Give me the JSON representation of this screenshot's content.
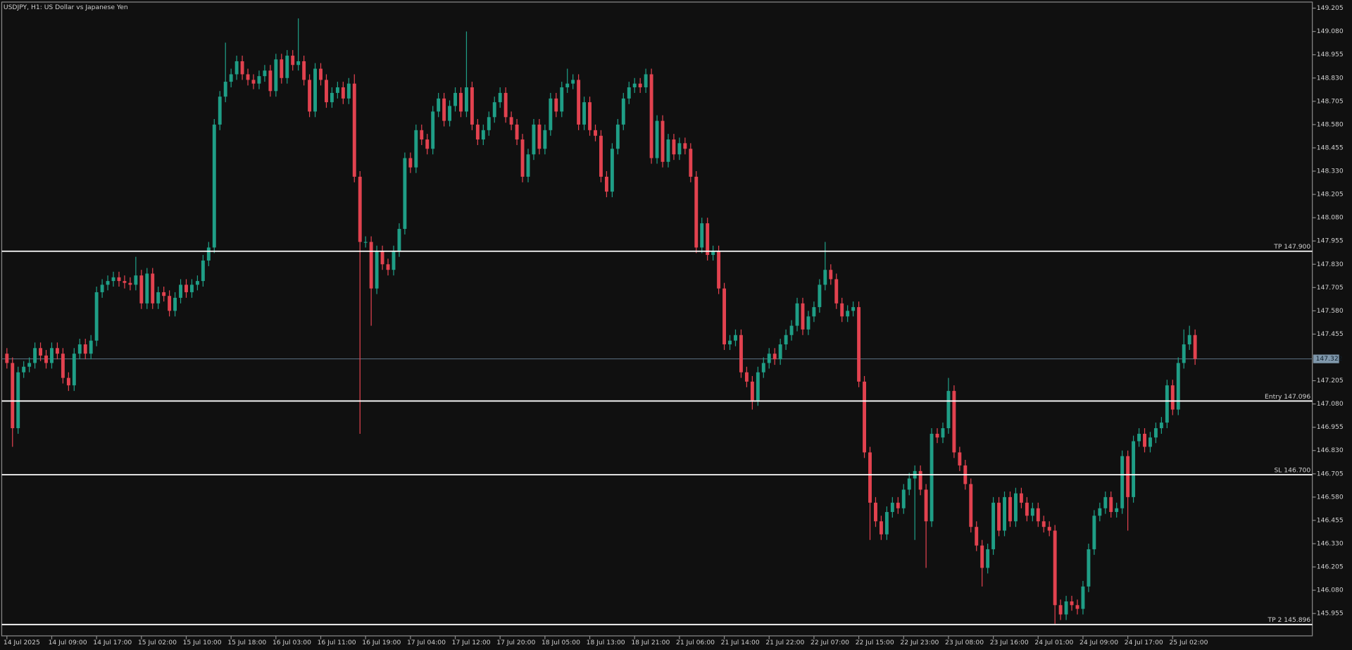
{
  "chart_data": {
    "type": "candlestick",
    "title": "USDJPY, H1:  US Dollar vs Japanese Yen",
    "up_color": "#1f9e86",
    "down_color": "#e2424f",
    "background": "#101010",
    "categories": [
      "14 Jul 2025",
      null,
      null,
      null,
      null,
      null,
      null,
      null,
      "14 Jul 09:00",
      null,
      null,
      null,
      null,
      null,
      null,
      null,
      "14 Jul 17:00",
      null,
      null,
      null,
      null,
      null,
      null,
      null,
      "15 Jul 02:00",
      null,
      null,
      null,
      null,
      null,
      null,
      null,
      "15 Jul 10:00",
      null,
      null,
      null,
      null,
      null,
      null,
      null,
      "15 Jul 18:00",
      null,
      null,
      null,
      null,
      null,
      null,
      null,
      "16 Jul 03:00",
      null,
      null,
      null,
      null,
      null,
      null,
      null,
      "16 Jul 11:00",
      null,
      null,
      null,
      null,
      null,
      null,
      null,
      "16 Jul 19:00",
      null,
      null,
      null,
      null,
      null,
      null,
      null,
      "17 Jul 04:00",
      null,
      null,
      null,
      null,
      null,
      null,
      null,
      "17 Jul 12:00",
      null,
      null,
      null,
      null,
      null,
      null,
      null,
      "17 Jul 20:00",
      null,
      null,
      null,
      null,
      null,
      null,
      null,
      "18 Jul 05:00",
      null,
      null,
      null,
      null,
      null,
      null,
      null,
      "18 Jul 13:00",
      null,
      null,
      null,
      null,
      null,
      null,
      null,
      "18 Jul 21:00",
      null,
      null,
      null,
      null,
      null,
      null,
      null,
      "21 Jul 06:00",
      null,
      null,
      null,
      null,
      null,
      null,
      null,
      "21 Jul 14:00",
      null,
      null,
      null,
      null,
      null,
      null,
      null,
      "21 Jul 22:00",
      null,
      null,
      null,
      null,
      null,
      null,
      null,
      "22 Jul 07:00",
      null,
      null,
      null,
      null,
      null,
      null,
      null,
      "22 Jul 15:00",
      null,
      null,
      null,
      null,
      null,
      null,
      null,
      "22 Jul 23:00",
      null,
      null,
      null,
      null,
      null,
      null,
      null,
      "23 Jul 08:00",
      null,
      null,
      null,
      null,
      null,
      null,
      null,
      "23 Jul 16:00",
      null,
      null,
      null,
      null,
      null,
      null,
      null,
      "24 Jul 01:00",
      null,
      null,
      null,
      null,
      null,
      null,
      null,
      "24 Jul 09:00",
      null,
      null,
      null,
      null,
      null,
      null,
      null,
      "24 Jul 17:00",
      null,
      null,
      null,
      null,
      null,
      null,
      null,
      "25 Jul 02:00",
      null,
      null,
      null,
      null
    ],
    "open": [
      147.35,
      147.3,
      146.95,
      147.25,
      147.28,
      147.3,
      147.38,
      147.34,
      147.3,
      147.38,
      147.35,
      147.22,
      147.18,
      147.35,
      147.4,
      147.35,
      147.42,
      147.68,
      147.72,
      147.74,
      147.76,
      147.74,
      147.73,
      147.72,
      147.77,
      147.62,
      147.78,
      147.62,
      147.68,
      147.66,
      147.58,
      147.65,
      147.72,
      147.68,
      147.72,
      147.74,
      147.85,
      147.92,
      148.58,
      148.73,
      148.81,
      148.85,
      148.92,
      148.85,
      148.82,
      148.8,
      148.84,
      148.87,
      148.76,
      148.93,
      148.83,
      148.95,
      148.9,
      148.92,
      148.82,
      148.65,
      148.88,
      148.82,
      148.7,
      148.75,
      148.78,
      148.72,
      148.8,
      148.3,
      147.95,
      147.95,
      147.7,
      147.9,
      147.83,
      147.8,
      147.9,
      148.02,
      148.4,
      148.35,
      148.55,
      148.5,
      148.45,
      148.65,
      148.72,
      148.6,
      148.68,
      148.75,
      148.65,
      148.78,
      148.58,
      148.5,
      148.55,
      148.62,
      148.7,
      148.75,
      148.62,
      148.58,
      148.5,
      148.3,
      148.42,
      148.58,
      148.45,
      148.55,
      148.72,
      148.65,
      148.78,
      148.8,
      148.82,
      148.58,
      148.7,
      148.55,
      148.52,
      148.3,
      148.22,
      148.45,
      148.58,
      148.72,
      148.78,
      148.8,
      148.78,
      148.85,
      148.4,
      148.6,
      148.38,
      148.5,
      148.42,
      148.48,
      148.45,
      148.3,
      147.92,
      148.05,
      147.88,
      147.9,
      147.7,
      147.4,
      147.42,
      147.45,
      147.25,
      147.2,
      147.1,
      147.25,
      147.3,
      147.35,
      147.32,
      147.4,
      147.45,
      147.5,
      147.62,
      147.48,
      147.55,
      147.6,
      147.72,
      147.8,
      147.75,
      147.62,
      147.55,
      147.58,
      147.6,
      147.2,
      146.82,
      146.55,
      146.45,
      146.38,
      146.5,
      146.55,
      146.52,
      146.62,
      146.68,
      146.72,
      146.62,
      146.45,
      146.92,
      146.9,
      146.95,
      147.15,
      146.82,
      146.75,
      146.65,
      146.42,
      146.32,
      146.2,
      146.3,
      146.55,
      146.4,
      146.58,
      146.45,
      146.6,
      146.55,
      146.48,
      146.52,
      146.45,
      146.42,
      146.4,
      146.0,
      145.95,
      146.02,
      146.0,
      145.98,
      146.1,
      146.3,
      146.48,
      146.52,
      146.58,
      146.5,
      146.52,
      146.8,
      146.58,
      146.88,
      146.92,
      146.85,
      146.9,
      146.95,
      146.98,
      147.18,
      147.05,
      147.3,
      147.4,
      147.45
    ],
    "high": [
      147.38,
      147.33,
      147.28,
      147.31,
      147.33,
      147.41,
      147.41,
      147.37,
      147.41,
      147.41,
      147.38,
      147.25,
      147.38,
      147.43,
      147.43,
      147.45,
      147.71,
      147.75,
      147.77,
      147.79,
      147.79,
      147.77,
      147.76,
      147.87,
      147.8,
      147.81,
      147.81,
      147.71,
      147.71,
      147.69,
      147.68,
      147.75,
      147.75,
      147.75,
      147.77,
      147.88,
      147.95,
      148.61,
      148.76,
      149.02,
      148.88,
      148.95,
      148.95,
      148.88,
      148.85,
      148.87,
      148.9,
      148.9,
      148.96,
      148.96,
      148.98,
      148.98,
      149.15,
      148.95,
      148.85,
      148.91,
      148.91,
      148.85,
      148.78,
      148.81,
      148.81,
      148.83,
      148.85,
      148.33,
      147.98,
      147.98,
      147.93,
      147.93,
      147.86,
      147.93,
      148.05,
      148.43,
      148.43,
      148.58,
      148.58,
      148.53,
      148.68,
      148.75,
      148.75,
      148.71,
      148.78,
      148.78,
      149.08,
      148.81,
      148.61,
      148.58,
      148.65,
      148.73,
      148.78,
      148.78,
      148.65,
      148.61,
      148.53,
      148.45,
      148.61,
      148.61,
      148.58,
      148.75,
      148.75,
      148.81,
      148.88,
      148.85,
      148.85,
      148.73,
      148.73,
      148.58,
      148.55,
      148.33,
      148.48,
      148.61,
      148.75,
      148.81,
      148.83,
      148.83,
      148.88,
      148.88,
      148.63,
      148.63,
      148.53,
      148.53,
      148.51,
      148.51,
      148.48,
      148.33,
      148.08,
      148.08,
      147.93,
      147.93,
      147.73,
      147.45,
      147.48,
      147.48,
      147.28,
      147.23,
      147.28,
      147.33,
      147.38,
      147.38,
      147.43,
      147.48,
      147.53,
      147.65,
      147.65,
      147.58,
      147.63,
      147.75,
      147.95,
      147.83,
      147.78,
      147.65,
      147.61,
      147.63,
      147.63,
      147.23,
      146.85,
      146.58,
      146.48,
      146.53,
      146.58,
      146.58,
      146.65,
      146.71,
      146.75,
      146.75,
      146.65,
      146.95,
      146.95,
      146.98,
      147.22,
      147.18,
      146.85,
      146.78,
      146.68,
      146.45,
      146.35,
      146.33,
      146.58,
      146.58,
      146.61,
      146.61,
      146.63,
      146.63,
      146.58,
      146.55,
      146.55,
      146.48,
      146.45,
      146.43,
      146.03,
      146.05,
      146.05,
      146.03,
      146.13,
      146.33,
      146.51,
      146.55,
      146.61,
      146.61,
      146.55,
      146.83,
      146.83,
      146.91,
      146.95,
      146.95,
      146.93,
      146.98,
      147.01,
      147.21,
      147.21,
      147.33,
      147.48,
      147.5,
      147.48
    ],
    "low": [
      147.27,
      146.85,
      146.92,
      147.22,
      147.25,
      147.27,
      147.31,
      147.27,
      147.27,
      147.32,
      147.19,
      147.15,
      147.15,
      147.32,
      147.32,
      147.32,
      147.39,
      147.65,
      147.69,
      147.71,
      147.71,
      147.7,
      147.69,
      147.69,
      147.59,
      147.59,
      147.59,
      147.59,
      147.63,
      147.55,
      147.55,
      147.62,
      147.65,
      147.65,
      147.69,
      147.71,
      147.82,
      147.89,
      148.55,
      148.7,
      148.78,
      148.82,
      148.82,
      148.79,
      148.77,
      148.77,
      148.81,
      148.73,
      148.73,
      148.8,
      148.8,
      148.87,
      148.87,
      148.79,
      148.62,
      148.62,
      148.79,
      148.67,
      148.67,
      148.72,
      148.69,
      148.69,
      148.27,
      146.92,
      147.92,
      147.5,
      147.67,
      147.8,
      147.77,
      147.77,
      147.87,
      147.99,
      148.32,
      148.32,
      148.47,
      148.42,
      148.42,
      148.62,
      148.57,
      148.57,
      148.65,
      148.62,
      148.62,
      148.55,
      148.47,
      148.47,
      148.52,
      148.59,
      148.67,
      148.59,
      148.55,
      148.47,
      148.27,
      148.27,
      148.39,
      148.42,
      148.42,
      148.52,
      148.62,
      148.62,
      148.75,
      148.77,
      148.55,
      148.55,
      148.52,
      148.49,
      148.27,
      148.19,
      148.19,
      148.42,
      148.55,
      148.69,
      148.75,
      148.75,
      148.75,
      148.37,
      148.37,
      148.35,
      148.35,
      148.39,
      148.39,
      148.42,
      148.27,
      147.89,
      147.89,
      147.85,
      147.85,
      147.67,
      147.37,
      147.37,
      147.39,
      147.22,
      147.17,
      147.05,
      147.07,
      147.22,
      147.27,
      147.29,
      147.29,
      147.37,
      147.42,
      147.47,
      147.45,
      147.45,
      147.52,
      147.57,
      147.69,
      147.72,
      147.59,
      147.52,
      147.52,
      147.55,
      147.17,
      146.79,
      146.35,
      146.42,
      146.35,
      146.35,
      146.47,
      146.49,
      146.49,
      146.59,
      146.35,
      146.59,
      146.2,
      146.42,
      146.87,
      146.87,
      146.92,
      146.79,
      146.72,
      146.62,
      146.39,
      146.29,
      146.1,
      146.17,
      146.27,
      146.37,
      146.37,
      146.42,
      146.42,
      146.52,
      146.45,
      146.45,
      146.42,
      146.39,
      146.37,
      145.9,
      145.92,
      145.92,
      145.97,
      145.95,
      145.95,
      146.07,
      146.27,
      146.45,
      146.49,
      146.47,
      146.47,
      146.49,
      146.4,
      146.55,
      146.85,
      146.82,
      146.82,
      146.87,
      146.92,
      146.95,
      147.02,
      147.02,
      147.27,
      147.37,
      147.29
    ],
    "close": [
      147.3,
      146.95,
      147.25,
      147.28,
      147.3,
      147.38,
      147.34,
      147.3,
      147.38,
      147.35,
      147.22,
      147.18,
      147.35,
      147.4,
      147.35,
      147.42,
      147.68,
      147.72,
      147.74,
      147.76,
      147.74,
      147.73,
      147.72,
      147.77,
      147.62,
      147.78,
      147.62,
      147.68,
      147.66,
      147.58,
      147.65,
      147.72,
      147.68,
      147.72,
      147.74,
      147.85,
      147.92,
      148.58,
      148.73,
      148.81,
      148.85,
      148.92,
      148.85,
      148.82,
      148.8,
      148.84,
      148.87,
      148.76,
      148.93,
      148.83,
      148.95,
      148.9,
      148.92,
      148.82,
      148.65,
      148.88,
      148.82,
      148.7,
      148.75,
      148.78,
      148.72,
      148.8,
      148.3,
      147.95,
      147.95,
      147.7,
      147.9,
      147.83,
      147.8,
      147.9,
      148.02,
      148.4,
      148.35,
      148.55,
      148.5,
      148.45,
      148.65,
      148.72,
      148.6,
      148.68,
      148.75,
      148.65,
      148.78,
      148.58,
      148.5,
      148.55,
      148.62,
      148.7,
      148.75,
      148.62,
      148.58,
      148.5,
      148.3,
      148.42,
      148.58,
      148.45,
      148.55,
      148.72,
      148.65,
      148.78,
      148.8,
      148.82,
      148.58,
      148.7,
      148.55,
      148.52,
      148.3,
      148.22,
      148.45,
      148.58,
      148.72,
      148.78,
      148.8,
      148.78,
      148.85,
      148.4,
      148.6,
      148.38,
      148.5,
      148.42,
      148.48,
      148.45,
      148.3,
      147.92,
      148.05,
      147.88,
      147.9,
      147.7,
      147.4,
      147.42,
      147.45,
      147.25,
      147.2,
      147.1,
      147.25,
      147.3,
      147.35,
      147.32,
      147.4,
      147.45,
      147.5,
      147.62,
      147.48,
      147.55,
      147.6,
      147.72,
      147.8,
      147.75,
      147.62,
      147.55,
      147.58,
      147.6,
      147.2,
      146.82,
      146.55,
      146.45,
      146.38,
      146.5,
      146.55,
      146.52,
      146.62,
      146.68,
      146.72,
      146.62,
      146.45,
      146.92,
      146.9,
      146.95,
      147.15,
      146.82,
      146.75,
      146.65,
      146.42,
      146.32,
      146.2,
      146.3,
      146.55,
      146.4,
      146.58,
      146.45,
      146.6,
      146.55,
      146.48,
      146.52,
      146.45,
      146.42,
      146.4,
      146.0,
      145.95,
      146.02,
      146.0,
      145.98,
      146.1,
      146.3,
      146.48,
      146.52,
      146.58,
      146.5,
      146.52,
      146.8,
      146.58,
      146.88,
      146.92,
      146.85,
      146.9,
      146.95,
      146.98,
      147.18,
      147.05,
      147.3,
      147.4,
      147.45,
      147.322
    ],
    "ylim": [
      145.835,
      149.247
    ],
    "yticks": [
      149.205,
      {
        "value": 149.08,
        "label": "149.080"
      },
      148.955,
      {
        "value": 148.83,
        "label": "148.830"
      },
      148.705,
      {
        "value": 148.58,
        "label": "148.580"
      },
      148.455,
      {
        "value": 148.33,
        "label": "148.330"
      },
      148.205,
      {
        "value": 148.08,
        "label": "148.080"
      },
      147.955,
      {
        "value": 147.83,
        "label": "147.830"
      },
      147.705,
      {
        "value": 147.58,
        "label": "147.580"
      },
      147.455,
      147.205,
      {
        "value": 147.08,
        "label": "147.080"
      },
      146.955,
      {
        "value": 146.83,
        "label": "146.830"
      },
      146.705,
      {
        "value": 146.58,
        "label": "146.580"
      },
      146.455,
      {
        "value": 146.33,
        "label": "146.330"
      },
      146.205,
      {
        "value": 146.08,
        "label": "146.080"
      },
      145.955
    ],
    "levels": [
      {
        "value": 147.9,
        "label": "TP 147.900"
      },
      {
        "value": 147.096,
        "label": "Entry 147.096"
      },
      {
        "value": 146.7,
        "label": "SL 146.700"
      },
      {
        "value": 145.896,
        "label": "TP 2 145.896"
      }
    ],
    "current_price": 147.322,
    "grid": false
  }
}
